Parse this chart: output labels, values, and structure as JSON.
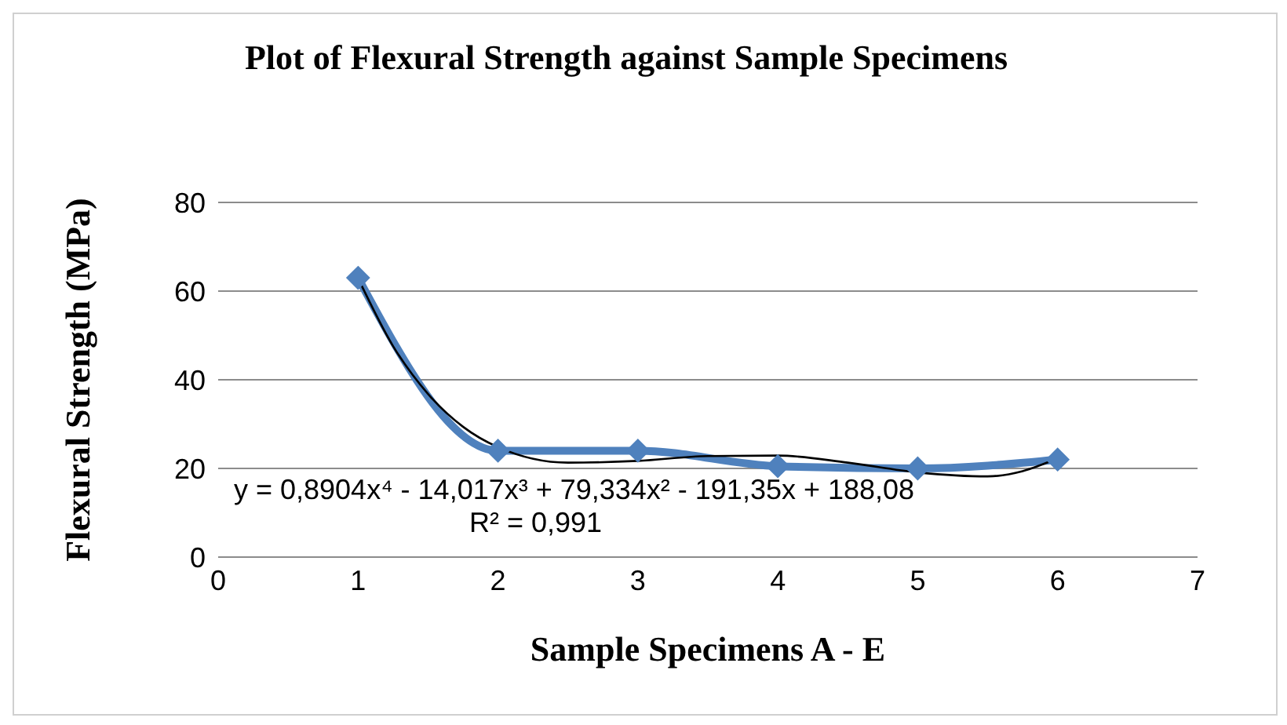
{
  "chart_data": {
    "type": "line",
    "title": "Plot of Flexural Strength against Sample Specimens",
    "xlabel": "Sample Specimens A - E",
    "ylabel": "Flexural Strength (MPa)",
    "series": [
      {
        "color": "#4f81bd",
        "x": [
          1,
          2,
          3,
          4,
          5,
          6
        ],
        "values": [
          63,
          24,
          24,
          20.5,
          20,
          22
        ],
        "marker": "diamond"
      },
      {
        "type": "line",
        "color": "#000000",
        "x": [
          1,
          1.25,
          1.5,
          1.75,
          2,
          2.5,
          3,
          3.5,
          4,
          4.5,
          5,
          5.5,
          5.75,
          6
        ],
        "values": [
          62.9,
          47.6,
          36.8,
          29.4,
          24.8,
          21.3,
          21.7,
          22.8,
          22.9,
          21.3,
          19.1,
          18.2,
          19.4,
          22.3
        ],
        "marker": "none"
      }
    ],
    "xlim": [
      0,
      7
    ],
    "xticks": [
      0,
      1,
      2,
      3,
      4,
      5,
      6,
      7
    ],
    "ylim": [
      0,
      80
    ],
    "yticks": [
      0,
      20,
      40,
      60,
      80
    ],
    "grid": "y",
    "legend": false,
    "annotations": [
      "y = 0,8904x⁴ - 14,017x³ + 79,334x² - 191,35x + 188,08",
      "R² = 0,991"
    ]
  }
}
